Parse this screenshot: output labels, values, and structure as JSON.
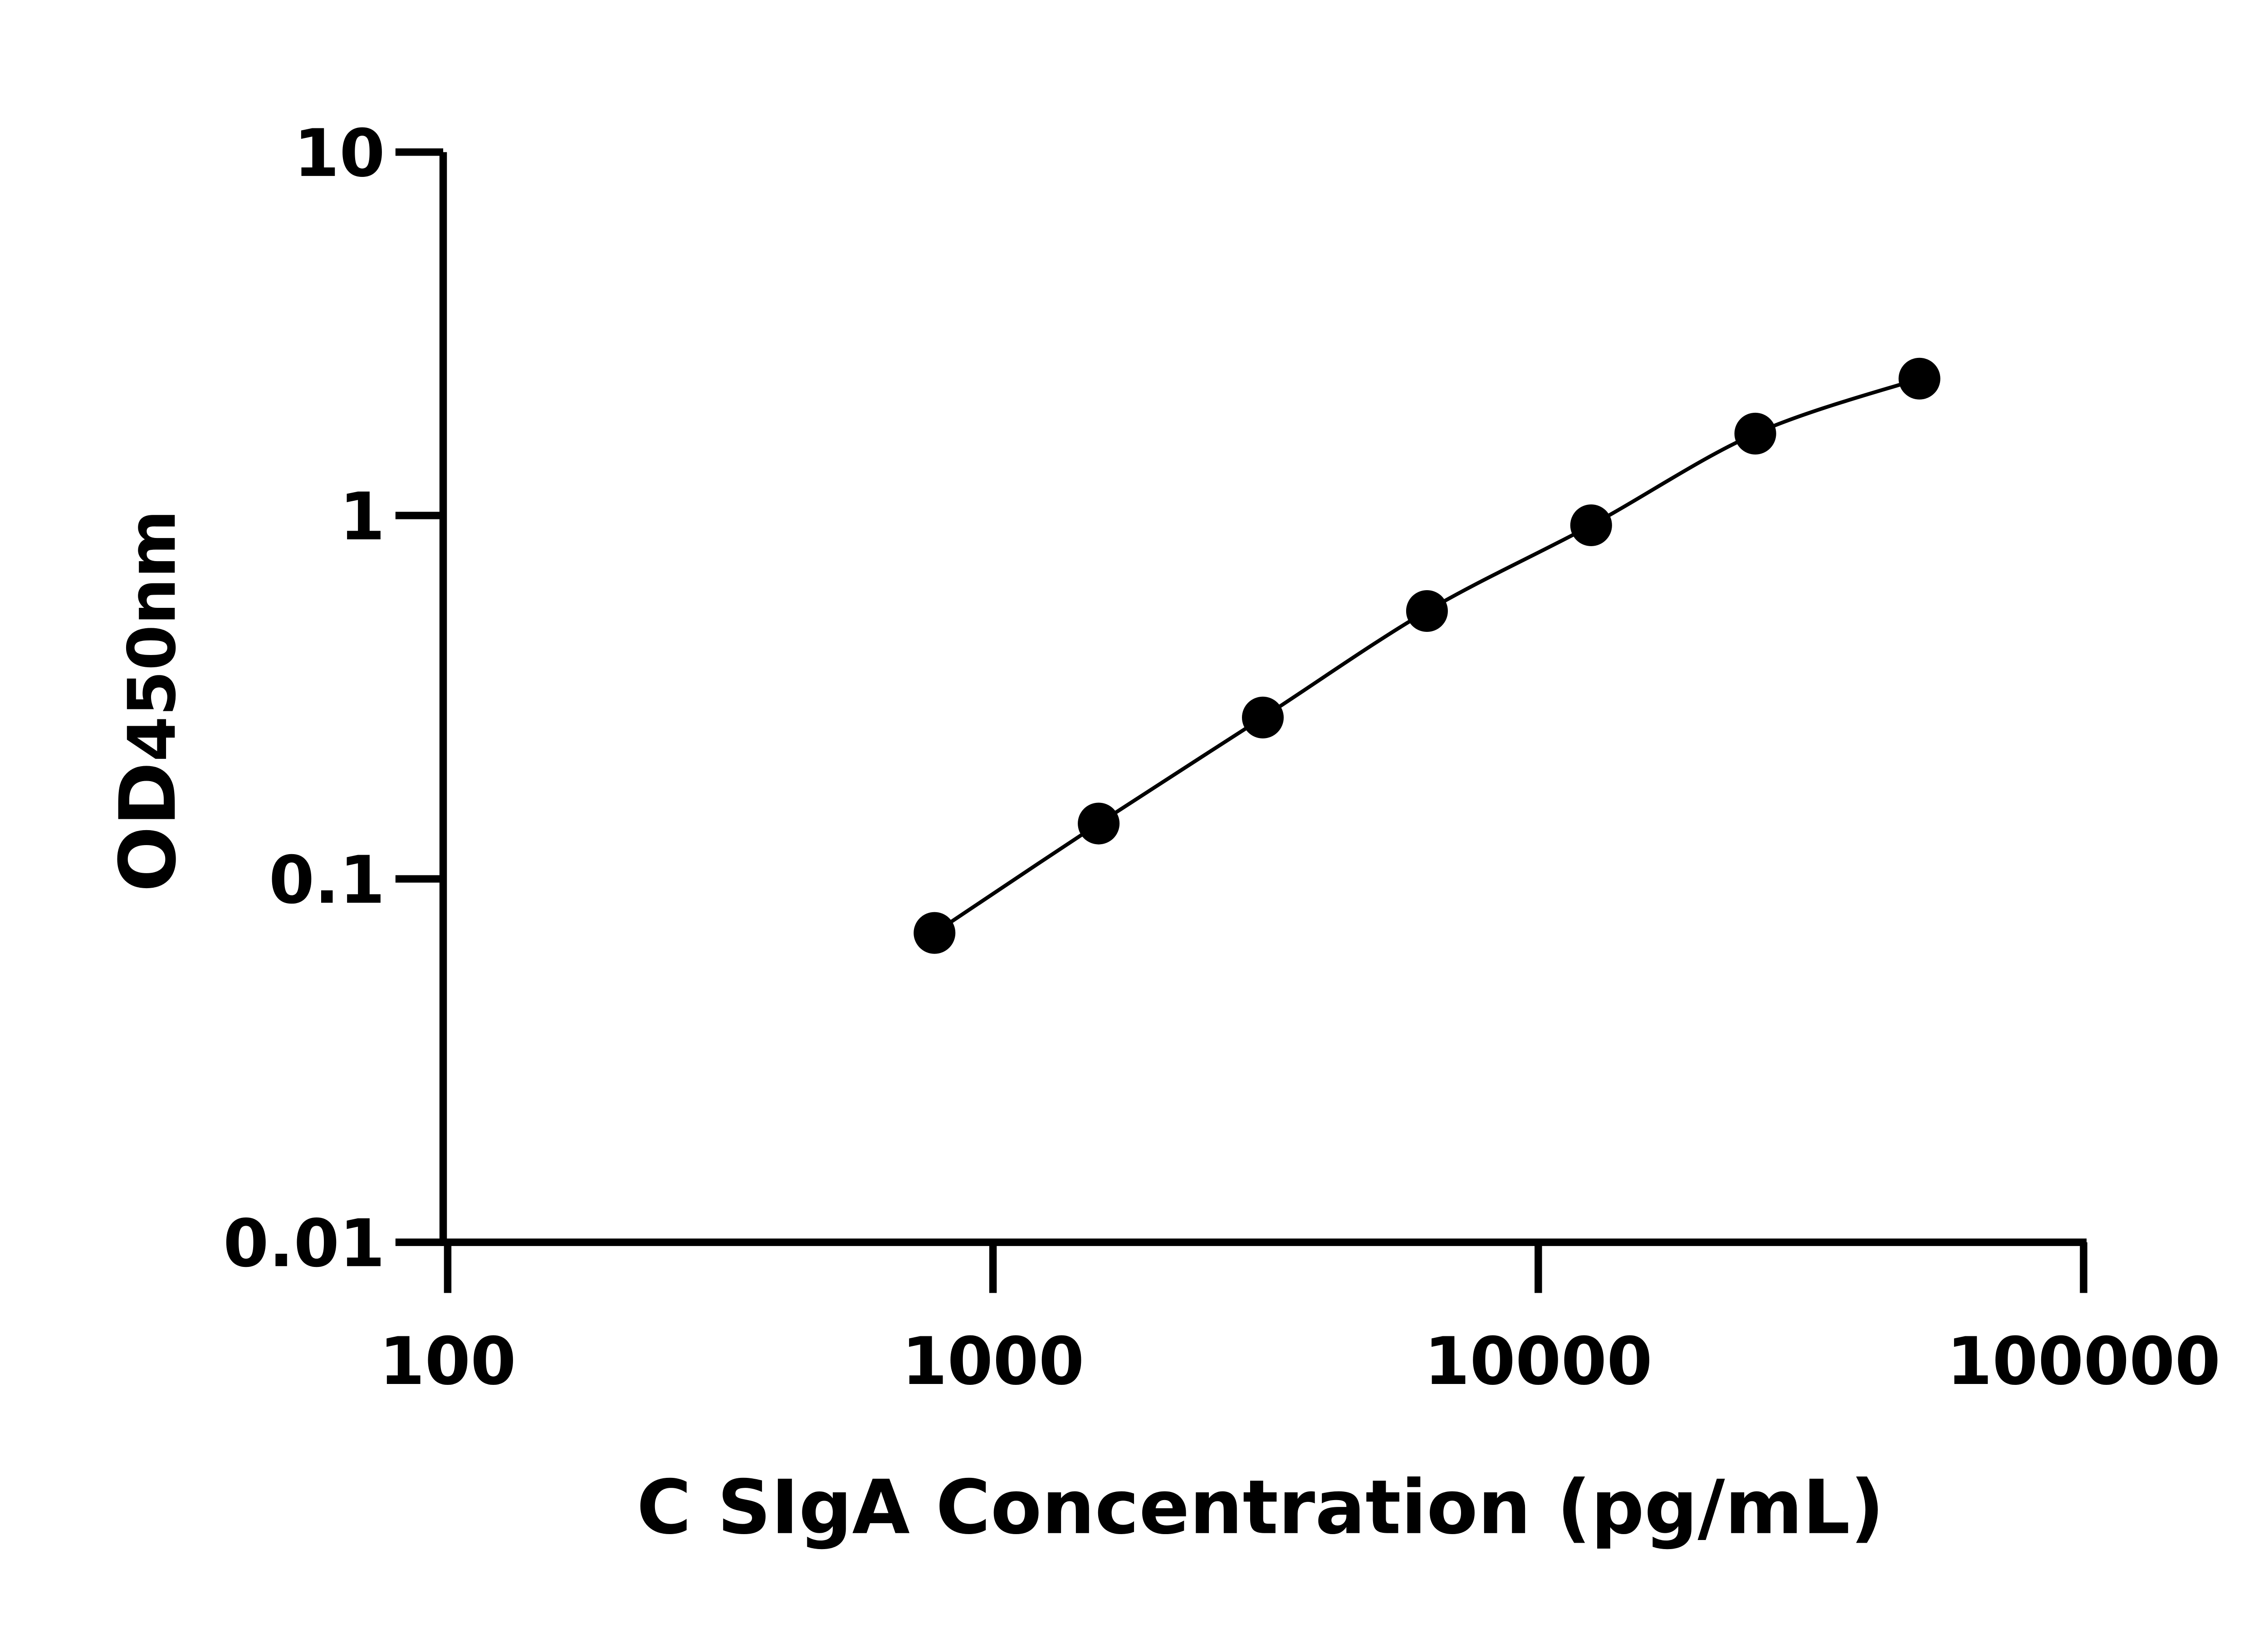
{
  "chart_data": {
    "type": "scatter",
    "title": "",
    "xlabel": "C SIgA Concentration (pg/mL)",
    "ylabel_main": "OD",
    "ylabel_sub": "450nm",
    "x_scale": "log",
    "y_scale": "log",
    "xlim": [
      100,
      100000
    ],
    "ylim": [
      0.01,
      10
    ],
    "x_ticks": [
      100,
      1000,
      10000,
      100000
    ],
    "x_tick_labels": [
      "100",
      "1000",
      "10000",
      "100000"
    ],
    "y_ticks": [
      0.01,
      0.1,
      1,
      10
    ],
    "y_tick_labels": [
      "0.01",
      "0.1",
      "1",
      "10"
    ],
    "grid": false,
    "legend": "none",
    "fit_curve": true,
    "marker_color": "#000000",
    "series": [
      {
        "x": [
          781.25,
          1562.5,
          3125,
          6250,
          12500,
          25000,
          50000
        ],
        "y": [
          0.071,
          0.142,
          0.278,
          0.546,
          0.94,
          1.68,
          2.38
        ]
      }
    ]
  }
}
